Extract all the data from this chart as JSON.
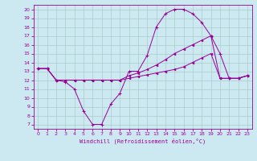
{
  "xlabel": "Windchill (Refroidissement éolien,°C)",
  "xlim": [
    -0.5,
    23.5
  ],
  "ylim": [
    6.5,
    20.5
  ],
  "xticks": [
    0,
    1,
    2,
    3,
    4,
    5,
    6,
    7,
    8,
    9,
    10,
    11,
    12,
    13,
    14,
    15,
    16,
    17,
    18,
    19,
    20,
    21,
    22,
    23
  ],
  "yticks": [
    7,
    8,
    9,
    10,
    11,
    12,
    13,
    14,
    15,
    16,
    17,
    18,
    19,
    20
  ],
  "bg_color": "#cce8f0",
  "line_color": "#990099",
  "grid_color": "#aacccc",
  "line1_x": [
    0,
    1,
    2,
    3,
    4,
    5,
    6,
    7,
    8,
    9,
    10,
    11,
    12,
    13,
    14,
    15,
    16,
    17,
    18,
    19,
    20,
    21,
    22,
    23
  ],
  "line1_y": [
    13.3,
    13.3,
    12.0,
    11.8,
    11.0,
    8.5,
    7.0,
    7.0,
    9.3,
    10.5,
    13.0,
    13.0,
    14.8,
    18.0,
    19.5,
    20.0,
    20.0,
    19.5,
    18.5,
    17.0,
    15.0,
    12.2,
    12.2,
    12.5
  ],
  "line2_x": [
    0,
    1,
    2,
    3,
    4,
    5,
    6,
    7,
    8,
    9,
    10,
    11,
    12,
    13,
    14,
    15,
    16,
    17,
    18,
    19,
    20,
    21,
    22,
    23
  ],
  "line2_y": [
    13.3,
    13.3,
    12.0,
    12.0,
    12.0,
    12.0,
    12.0,
    12.0,
    12.0,
    12.0,
    12.2,
    12.4,
    12.6,
    12.8,
    13.0,
    13.2,
    13.5,
    14.0,
    14.5,
    15.0,
    12.2,
    12.2,
    12.2,
    12.5
  ],
  "line3_x": [
    0,
    1,
    2,
    3,
    4,
    5,
    6,
    7,
    8,
    9,
    10,
    11,
    12,
    13,
    14,
    15,
    16,
    17,
    18,
    19,
    20,
    21,
    22,
    23
  ],
  "line3_y": [
    13.3,
    13.3,
    12.0,
    12.0,
    12.0,
    12.0,
    12.0,
    12.0,
    12.0,
    12.0,
    12.5,
    12.8,
    13.2,
    13.7,
    14.3,
    15.0,
    15.5,
    16.0,
    16.5,
    17.0,
    12.2,
    12.2,
    12.2,
    12.5
  ]
}
